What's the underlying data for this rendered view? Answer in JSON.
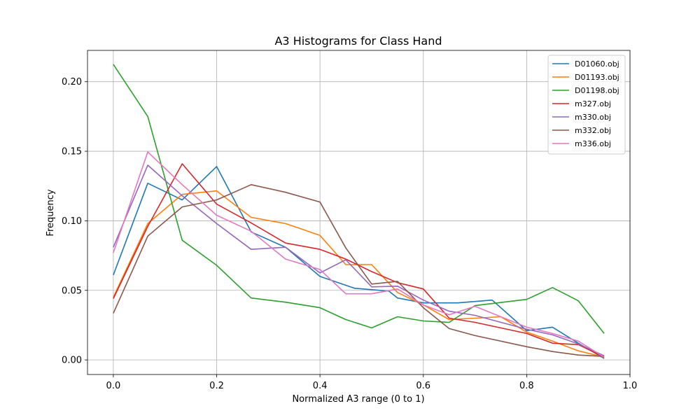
{
  "chart_data": {
    "type": "line",
    "title": "A3 Histograms for Class Hand",
    "xlabel": "Normalized A3 range (0 to 1)",
    "ylabel": "Frequency",
    "xlim": [
      -0.05,
      1.0
    ],
    "ylim": [
      -0.0105,
      0.2225
    ],
    "xticks": [
      "0.0",
      "0.2",
      "0.4",
      "0.6",
      "0.8",
      "1.0"
    ],
    "yticks": [
      "0.00",
      "0.05",
      "0.10",
      "0.15",
      "0.20"
    ],
    "grid": true,
    "legend_position": "top-right",
    "x": [
      0.0,
      0.0667,
      0.1333,
      0.2,
      0.2667,
      0.3333,
      0.4,
      0.4667,
      0.5333,
      0.6,
      0.6667,
      0.7333,
      0.8,
      0.8667,
      0.9333,
      0.95
    ],
    "series": [
      {
        "name": "D01060.obj",
        "color": "#1f77b4",
        "points": [
          [
            0.0,
            0.061
          ],
          [
            0.0667,
            0.127
          ],
          [
            0.1333,
            0.115
          ],
          [
            0.2,
            0.139
          ],
          [
            0.2667,
            0.092
          ],
          [
            0.3333,
            0.081
          ],
          [
            0.4,
            0.06
          ],
          [
            0.4667,
            0.0515
          ],
          [
            0.5333,
            0.0495
          ],
          [
            0.55,
            0.0445
          ],
          [
            0.6,
            0.041
          ],
          [
            0.6667,
            0.041
          ],
          [
            0.7333,
            0.043
          ],
          [
            0.8,
            0.021
          ],
          [
            0.85,
            0.0235
          ],
          [
            0.9,
            0.012
          ],
          [
            0.95,
            0.001
          ]
        ]
      },
      {
        "name": "D01193.obj",
        "color": "#ff7f0e",
        "points": [
          [
            0.0,
            0.045
          ],
          [
            0.0667,
            0.098
          ],
          [
            0.1333,
            0.119
          ],
          [
            0.2,
            0.1215
          ],
          [
            0.2667,
            0.1025
          ],
          [
            0.3333,
            0.098
          ],
          [
            0.4,
            0.0895
          ],
          [
            0.45,
            0.0685
          ],
          [
            0.5,
            0.0685
          ],
          [
            0.55,
            0.0485
          ],
          [
            0.6,
            0.0395
          ],
          [
            0.65,
            0.029
          ],
          [
            0.7,
            0.03
          ],
          [
            0.75,
            0.031
          ],
          [
            0.8,
            0.02
          ],
          [
            0.85,
            0.0135
          ],
          [
            0.9,
            0.0065
          ],
          [
            0.95,
            0.002
          ]
        ]
      },
      {
        "name": "D01198.obj",
        "color": "#2ca02c",
        "points": [
          [
            0.0,
            0.2125
          ],
          [
            0.0667,
            0.175
          ],
          [
            0.1333,
            0.086
          ],
          [
            0.2,
            0.068
          ],
          [
            0.2667,
            0.0445
          ],
          [
            0.3333,
            0.0415
          ],
          [
            0.4,
            0.0375
          ],
          [
            0.45,
            0.029
          ],
          [
            0.5,
            0.023
          ],
          [
            0.55,
            0.031
          ],
          [
            0.6,
            0.028
          ],
          [
            0.65,
            0.027
          ],
          [
            0.7,
            0.039
          ],
          [
            0.8,
            0.0435
          ],
          [
            0.85,
            0.052
          ],
          [
            0.9,
            0.0425
          ],
          [
            0.95,
            0.019
          ]
        ]
      },
      {
        "name": "m327.obj",
        "color": "#d62728",
        "points": [
          [
            0.0,
            0.044
          ],
          [
            0.0667,
            0.096
          ],
          [
            0.1333,
            0.141
          ],
          [
            0.2,
            0.112
          ],
          [
            0.2667,
            0.0985
          ],
          [
            0.3333,
            0.084
          ],
          [
            0.4,
            0.0795
          ],
          [
            0.45,
            0.0725
          ],
          [
            0.5,
            0.0635
          ],
          [
            0.55,
            0.0555
          ],
          [
            0.6,
            0.051
          ],
          [
            0.65,
            0.03
          ],
          [
            0.7,
            0.027
          ],
          [
            0.8,
            0.019
          ],
          [
            0.85,
            0.012
          ],
          [
            0.9,
            0.011
          ],
          [
            0.95,
            0.002
          ]
        ]
      },
      {
        "name": "m330.obj",
        "color": "#9467bd",
        "points": [
          [
            0.0,
            0.081
          ],
          [
            0.0667,
            0.14
          ],
          [
            0.1333,
            0.118
          ],
          [
            0.2,
            0.098
          ],
          [
            0.2667,
            0.0795
          ],
          [
            0.3333,
            0.081
          ],
          [
            0.4,
            0.0625
          ],
          [
            0.45,
            0.072
          ],
          [
            0.5,
            0.0525
          ],
          [
            0.55,
            0.053
          ],
          [
            0.6,
            0.043
          ],
          [
            0.65,
            0.035
          ],
          [
            0.7,
            0.032
          ],
          [
            0.8,
            0.022
          ],
          [
            0.85,
            0.018
          ],
          [
            0.9,
            0.0115
          ],
          [
            0.95,
            0.003
          ]
        ]
      },
      {
        "name": "m332.obj",
        "color": "#8c564b",
        "points": [
          [
            0.0,
            0.0335
          ],
          [
            0.0667,
            0.089
          ],
          [
            0.1333,
            0.11
          ],
          [
            0.2,
            0.115
          ],
          [
            0.2667,
            0.126
          ],
          [
            0.3333,
            0.1205
          ],
          [
            0.4,
            0.1135
          ],
          [
            0.45,
            0.0805
          ],
          [
            0.5,
            0.0545
          ],
          [
            0.55,
            0.0565
          ],
          [
            0.6,
            0.0375
          ],
          [
            0.65,
            0.0225
          ],
          [
            0.7,
            0.0175
          ],
          [
            0.8,
            0.0095
          ],
          [
            0.85,
            0.006
          ],
          [
            0.9,
            0.0035
          ],
          [
            0.95,
            0.0025
          ]
        ]
      },
      {
        "name": "m336.obj",
        "color": "#e377c2",
        "points": [
          [
            0.0,
            0.077
          ],
          [
            0.0667,
            0.1495
          ],
          [
            0.1333,
            0.126
          ],
          [
            0.2,
            0.104
          ],
          [
            0.2667,
            0.0925
          ],
          [
            0.3333,
            0.0725
          ],
          [
            0.4,
            0.065
          ],
          [
            0.45,
            0.0475
          ],
          [
            0.5,
            0.0475
          ],
          [
            0.55,
            0.051
          ],
          [
            0.6,
            0.0395
          ],
          [
            0.65,
            0.0325
          ],
          [
            0.7,
            0.0385
          ],
          [
            0.8,
            0.0235
          ],
          [
            0.85,
            0.019
          ],
          [
            0.9,
            0.0135
          ],
          [
            0.95,
            0.002
          ]
        ]
      }
    ]
  }
}
